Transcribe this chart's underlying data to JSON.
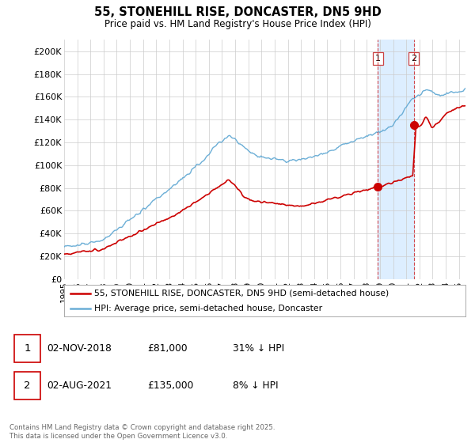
{
  "title": "55, STONEHILL RISE, DONCASTER, DN5 9HD",
  "subtitle": "Price paid vs. HM Land Registry's House Price Index (HPI)",
  "ylabel_ticks": [
    "£0",
    "£20K",
    "£40K",
    "£60K",
    "£80K",
    "£100K",
    "£120K",
    "£140K",
    "£160K",
    "£180K",
    "£200K"
  ],
  "ytick_values": [
    0,
    20000,
    40000,
    60000,
    80000,
    100000,
    120000,
    140000,
    160000,
    180000,
    200000
  ],
  "ylim": [
    0,
    210000
  ],
  "xlim_start": 1995.0,
  "xlim_end": 2025.5,
  "hpi_color": "#6baed6",
  "price_color": "#cc0000",
  "shade_color": "#ddeeff",
  "marker1_date": 2018.84,
  "marker1_price": 81000,
  "marker2_date": 2021.58,
  "marker2_price": 135000,
  "legend_line1": "55, STONEHILL RISE, DONCASTER, DN5 9HD (semi-detached house)",
  "legend_line2": "HPI: Average price, semi-detached house, Doncaster",
  "annotation1_date": "02-NOV-2018",
  "annotation1_price": "£81,000",
  "annotation1_hpi": "31% ↓ HPI",
  "annotation2_date": "02-AUG-2021",
  "annotation2_price": "£135,000",
  "annotation2_hpi": "8% ↓ HPI",
  "footer": "Contains HM Land Registry data © Crown copyright and database right 2025.\nThis data is licensed under the Open Government Licence v3.0.",
  "background_color": "#ffffff",
  "grid_color": "#cccccc"
}
